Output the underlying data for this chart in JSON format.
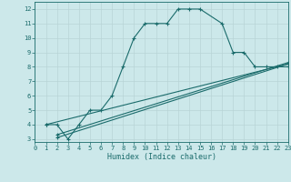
{
  "bg_color": "#cce8ea",
  "grid_color": "#b8d4d6",
  "line_color": "#1a6b6b",
  "xlabel": "Humidex (Indice chaleur)",
  "xlim": [
    0,
    23
  ],
  "ylim": [
    2.8,
    12.5
  ],
  "yticks": [
    3,
    4,
    5,
    6,
    7,
    8,
    9,
    10,
    11,
    12
  ],
  "xticks": [
    0,
    1,
    2,
    3,
    4,
    5,
    6,
    7,
    8,
    9,
    10,
    11,
    12,
    13,
    14,
    15,
    16,
    17,
    18,
    19,
    20,
    21,
    22,
    23
  ],
  "curve1_x": [
    1,
    2,
    3,
    4,
    5,
    6,
    7,
    8,
    9,
    10,
    11,
    12,
    13,
    14,
    15,
    17,
    18,
    19,
    20,
    21,
    22,
    23
  ],
  "curve1_y": [
    4,
    4,
    3,
    4,
    5,
    5,
    6,
    8,
    10,
    11,
    11,
    11,
    12,
    12,
    12,
    11,
    9,
    9,
    8,
    8,
    8,
    8
  ],
  "curve2_x": [
    2,
    23
  ],
  "curve2_y": [
    3.1,
    8.2
  ],
  "curve3_x": [
    2,
    23
  ],
  "curve3_y": [
    3.3,
    8.3
  ],
  "curve4_x": [
    1,
    23
  ],
  "curve4_y": [
    4,
    8.2
  ]
}
